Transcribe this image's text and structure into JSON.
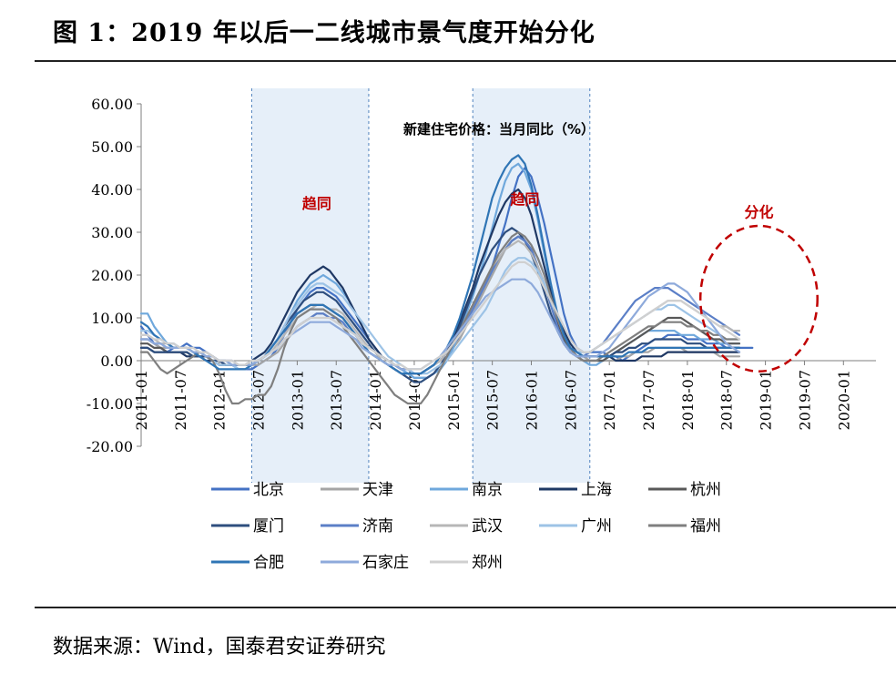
{
  "figure": {
    "title": "图 1：2019 年以后一二线城市景气度开始分化",
    "source": "数据来源：Wind，国泰君安证券研究"
  },
  "chart_data": {
    "type": "line",
    "title": "新建住宅价格：当月同比（%）",
    "xlabel": "",
    "ylabel": "",
    "ylim": [
      -20,
      60
    ],
    "yticks": [
      "60.00",
      "50.00",
      "40.00",
      "30.00",
      "20.00",
      "10.00",
      "0.00",
      "-10.00",
      "-20.00"
    ],
    "x_start": "2011-01",
    "x_end": "2020-06",
    "xticks": [
      "2011-01",
      "2011-07",
      "2012-01",
      "2012-07",
      "2013-01",
      "2013-07",
      "2014-01",
      "2014-07",
      "2015-01",
      "2015-07",
      "2016-01",
      "2016-07",
      "2017-01",
      "2017-07",
      "2018-01",
      "2018-07",
      "2019-01",
      "2019-07",
      "2020-01"
    ],
    "grid": false,
    "legend_position": "bottom",
    "shaded_periods": [
      {
        "from": "2012-06",
        "to": "2013-12"
      },
      {
        "from": "2015-04",
        "to": "2016-10"
      }
    ],
    "annotations": [
      {
        "text": "趋同",
        "x": "2013-04",
        "y": 35.5
      },
      {
        "text": "趋同",
        "x": "2015-12",
        "y": 36.5
      },
      {
        "text": "分化",
        "x": "2018-12",
        "y": 33.5
      }
    ],
    "ellipse": {
      "center_x": "2018-12",
      "center_y": 14.5,
      "rx_months": 9,
      "ry": 17
    },
    "series": [
      {
        "name": "北京",
        "color": "#4472c4",
        "values": [
          8,
          6,
          4,
          3,
          2,
          3,
          3,
          4,
          3,
          3,
          2,
          1,
          0,
          -1,
          -1,
          -2,
          -2,
          -2,
          -1,
          0,
          1,
          3,
          6,
          9,
          12,
          14,
          16,
          17,
          17,
          16,
          15,
          13,
          11,
          9,
          7,
          5,
          3,
          1,
          0,
          -1,
          -2,
          -3,
          -4,
          -4,
          -4,
          -3,
          -2,
          0,
          3,
          6,
          9,
          12,
          15,
          18,
          22,
          27,
          32,
          38,
          43,
          45,
          43,
          38,
          32,
          25,
          18,
          11,
          6,
          3,
          2,
          2,
          2,
          2,
          1,
          1,
          0,
          1,
          2,
          3,
          4,
          5,
          5,
          6,
          6,
          6,
          5,
          5,
          5,
          4,
          4,
          4,
          3,
          3,
          3,
          3,
          3
        ]
      },
      {
        "name": "天津",
        "color": "#a5a5a5",
        "values": [
          5,
          5,
          4,
          3,
          3,
          3,
          3,
          3,
          2,
          2,
          2,
          1,
          0,
          0,
          -1,
          -1,
          -1,
          -1,
          -1,
          0,
          1,
          2,
          4,
          6,
          8,
          9,
          10,
          11,
          11,
          10,
          9,
          8,
          6,
          5,
          4,
          2,
          1,
          0,
          -1,
          -2,
          -3,
          -3,
          -3,
          -3,
          -2,
          -1,
          0,
          1,
          3,
          5,
          8,
          11,
          14,
          17,
          20,
          23,
          26,
          28,
          29,
          28,
          26,
          22,
          18,
          13,
          8,
          4,
          2,
          1,
          1,
          0,
          0,
          0,
          0,
          0,
          1,
          1,
          2,
          2,
          2,
          3,
          3,
          3,
          3,
          3,
          2,
          2,
          2,
          2,
          2,
          1,
          1,
          1,
          1
        ]
      },
      {
        "name": "南京",
        "color": "#6fa8dc",
        "values": [
          11,
          11,
          8,
          6,
          4,
          4,
          3,
          3,
          2,
          2,
          1,
          0,
          -1,
          -1,
          -1,
          -2,
          -2,
          -1,
          0,
          1,
          3,
          5,
          8,
          11,
          14,
          16,
          18,
          19,
          20,
          19,
          18,
          16,
          14,
          11,
          8,
          5,
          3,
          1,
          0,
          -1,
          -2,
          -3,
          -4,
          -4,
          -4,
          -3,
          -2,
          0,
          3,
          7,
          11,
          15,
          20,
          25,
          31,
          37,
          42,
          45,
          46,
          44,
          40,
          33,
          25,
          17,
          10,
          5,
          2,
          1,
          0,
          -1,
          -1,
          0,
          1,
          2,
          3,
          4,
          5,
          6,
          7,
          7,
          7,
          7,
          7,
          6,
          6,
          6,
          5,
          5,
          5,
          4,
          4,
          4,
          4
        ]
      },
      {
        "name": "上海",
        "color": "#1f3864",
        "values": [
          3,
          3,
          2,
          2,
          2,
          2,
          2,
          1,
          1,
          1,
          0,
          0,
          -1,
          -1,
          -1,
          -1,
          -1,
          0,
          1,
          2,
          4,
          7,
          10,
          13,
          16,
          18,
          20,
          21,
          22,
          21,
          19,
          17,
          14,
          11,
          8,
          5,
          3,
          1,
          0,
          -1,
          -2,
          -2,
          -3,
          -3,
          -2,
          -1,
          0,
          2,
          5,
          9,
          13,
          17,
          22,
          26,
          30,
          34,
          37,
          39,
          40,
          38,
          34,
          28,
          22,
          16,
          11,
          7,
          4,
          2,
          1,
          1,
          1,
          1,
          1,
          0,
          0,
          0,
          0,
          1,
          1,
          1,
          1,
          2,
          2,
          2,
          2,
          2,
          2,
          2,
          2,
          2,
          2,
          2,
          2
        ]
      },
      {
        "name": "杭州",
        "color": "#595959",
        "values": [
          4,
          4,
          3,
          3,
          2,
          2,
          2,
          2,
          1,
          1,
          1,
          0,
          0,
          -1,
          -1,
          -1,
          -1,
          -1,
          0,
          1,
          3,
          5,
          7,
          9,
          11,
          12,
          13,
          13,
          13,
          12,
          11,
          10,
          8,
          6,
          4,
          2,
          1,
          0,
          -1,
          -2,
          -3,
          -3,
          -3,
          -3,
          -2,
          -1,
          0,
          2,
          4,
          7,
          10,
          13,
          16,
          19,
          22,
          24,
          26,
          28,
          29,
          28,
          26,
          22,
          18,
          13,
          9,
          5,
          3,
          1,
          0,
          0,
          0,
          0,
          1,
          2,
          3,
          4,
          5,
          6,
          7,
          8,
          9,
          10,
          10,
          10,
          9,
          8,
          7,
          6,
          5,
          5,
          4,
          4,
          4
        ]
      },
      {
        "name": "厦门",
        "color": "#2e4e7e",
        "values": [
          3,
          3,
          2,
          2,
          2,
          2,
          2,
          2,
          1,
          1,
          1,
          0,
          0,
          -1,
          -1,
          -1,
          -1,
          -1,
          0,
          1,
          3,
          5,
          8,
          10,
          12,
          14,
          15,
          16,
          16,
          15,
          14,
          12,
          10,
          8,
          6,
          4,
          2,
          0,
          -1,
          -2,
          -3,
          -4,
          -5,
          -5,
          -4,
          -3,
          -1,
          1,
          4,
          8,
          12,
          16,
          20,
          23,
          26,
          28,
          30,
          31,
          30,
          28,
          25,
          21,
          16,
          11,
          7,
          4,
          2,
          1,
          1,
          1,
          1,
          1,
          1,
          2,
          2,
          3,
          3,
          4,
          4,
          5,
          5,
          5,
          5,
          5,
          4,
          4,
          4,
          3,
          3,
          3,
          3,
          3,
          3
        ]
      },
      {
        "name": "济南",
        "color": "#5b7fc7",
        "values": [
          5,
          5,
          4,
          4,
          3,
          3,
          3,
          3,
          2,
          2,
          1,
          1,
          0,
          0,
          0,
          -1,
          -1,
          0,
          0,
          1,
          2,
          3,
          5,
          6,
          8,
          9,
          10,
          11,
          11,
          10,
          10,
          9,
          7,
          6,
          4,
          2,
          1,
          0,
          -1,
          -2,
          -3,
          -3,
          -3,
          -3,
          -2,
          -1,
          0,
          2,
          4,
          6,
          9,
          12,
          15,
          18,
          21,
          24,
          26,
          28,
          29,
          28,
          26,
          22,
          18,
          13,
          8,
          4,
          2,
          1,
          1,
          2,
          3,
          4,
          6,
          8,
          10,
          12,
          14,
          15,
          16,
          17,
          17,
          17,
          16,
          15,
          14,
          13,
          12,
          11,
          10,
          9,
          8,
          7,
          6
        ]
      },
      {
        "name": "武汉",
        "color": "#b7b7b7",
        "values": [
          6,
          6,
          5,
          4,
          4,
          3,
          3,
          3,
          2,
          2,
          1,
          1,
          0,
          0,
          0,
          -1,
          -1,
          0,
          0,
          1,
          2,
          4,
          6,
          8,
          10,
          11,
          12,
          13,
          13,
          12,
          12,
          11,
          9,
          7,
          5,
          3,
          2,
          0,
          -1,
          -2,
          -3,
          -3,
          -3,
          -3,
          -2,
          -1,
          0,
          2,
          4,
          7,
          10,
          13,
          16,
          19,
          22,
          24,
          26,
          27,
          28,
          27,
          25,
          22,
          18,
          14,
          10,
          6,
          3,
          2,
          2,
          2,
          3,
          4,
          5,
          6,
          7,
          8,
          9,
          10,
          11,
          12,
          13,
          14,
          14,
          14,
          13,
          12,
          11,
          10,
          9,
          8,
          8,
          7,
          7
        ]
      },
      {
        "name": "广州",
        "color": "#9dc3e6",
        "values": [
          7,
          7,
          6,
          5,
          4,
          4,
          3,
          3,
          2,
          2,
          1,
          0,
          -1,
          -1,
          -1,
          -2,
          -2,
          -1,
          0,
          1,
          3,
          5,
          8,
          11,
          13,
          15,
          17,
          18,
          18,
          17,
          16,
          15,
          13,
          11,
          9,
          7,
          5,
          3,
          1,
          0,
          -1,
          -2,
          -3,
          -3,
          -3,
          -2,
          -1,
          0,
          2,
          4,
          6,
          8,
          10,
          12,
          15,
          18,
          21,
          23,
          24,
          24,
          23,
          21,
          18,
          14,
          10,
          6,
          3,
          2,
          2,
          2,
          3,
          4,
          5,
          6,
          7,
          8,
          9,
          10,
          11,
          12,
          12,
          13,
          13,
          12,
          11,
          10,
          9,
          8,
          7,
          6,
          5,
          5,
          5
        ]
      },
      {
        "name": "福州",
        "color": "#7f7f7f",
        "values": [
          2,
          2,
          0,
          -2,
          -3,
          -2,
          -1,
          0,
          1,
          2,
          1,
          0,
          -3,
          -7,
          -10,
          -10,
          -9,
          -9,
          -8,
          -8,
          -6,
          -2,
          3,
          7,
          10,
          11,
          12,
          12,
          12,
          11,
          10,
          8,
          6,
          4,
          2,
          0,
          -2,
          -4,
          -6,
          -8,
          -9,
          -10,
          -10,
          -10,
          -8,
          -5,
          -2,
          1,
          4,
          7,
          10,
          13,
          16,
          19,
          22,
          25,
          27,
          29,
          30,
          29,
          27,
          24,
          20,
          15,
          10,
          6,
          3,
          1,
          0,
          0,
          0,
          1,
          2,
          3,
          4,
          5,
          6,
          7,
          8,
          8,
          9,
          9,
          9,
          9,
          8,
          8,
          7,
          7,
          6,
          6,
          5,
          5,
          5
        ]
      },
      {
        "name": "合肥",
        "color": "#2f75b5",
        "values": [
          9,
          8,
          6,
          5,
          4,
          3,
          3,
          3,
          2,
          1,
          0,
          -1,
          -2,
          -2,
          -2,
          -2,
          -2,
          -1,
          0,
          1,
          3,
          5,
          7,
          9,
          11,
          12,
          13,
          13,
          13,
          12,
          11,
          10,
          8,
          6,
          4,
          2,
          1,
          0,
          -1,
          -2,
          -3,
          -3,
          -3,
          -3,
          -2,
          -1,
          1,
          3,
          6,
          10,
          15,
          20,
          26,
          32,
          38,
          42,
          45,
          47,
          48,
          46,
          41,
          34,
          26,
          18,
          11,
          6,
          3,
          2,
          1,
          1,
          1,
          1,
          1,
          1,
          1,
          2,
          2,
          2,
          3,
          3,
          3,
          3,
          3,
          3,
          3,
          3,
          3,
          3,
          3,
          3,
          3,
          3,
          3
        ]
      },
      {
        "name": "石家庄",
        "color": "#8eaadb",
        "values": [
          5,
          5,
          4,
          4,
          3,
          3,
          3,
          3,
          2,
          2,
          1,
          1,
          0,
          0,
          -1,
          -1,
          -1,
          -1,
          0,
          1,
          2,
          3,
          5,
          6,
          7,
          8,
          9,
          9,
          9,
          9,
          8,
          7,
          6,
          5,
          3,
          2,
          1,
          0,
          -1,
          -1,
          -2,
          -2,
          -2,
          -2,
          -1,
          0,
          1,
          3,
          5,
          7,
          9,
          11,
          13,
          15,
          16,
          17,
          18,
          19,
          19,
          19,
          18,
          16,
          13,
          10,
          7,
          4,
          2,
          1,
          1,
          1,
          1,
          2,
          3,
          5,
          7,
          9,
          11,
          13,
          15,
          16,
          17,
          18,
          18,
          17,
          16,
          14,
          12,
          10,
          8,
          6,
          4,
          3,
          2
        ]
      },
      {
        "name": "郑州",
        "color": "#d0d0d0",
        "values": [
          6,
          6,
          5,
          5,
          4,
          4,
          3,
          3,
          3,
          2,
          2,
          1,
          0,
          0,
          0,
          -1,
          -1,
          0,
          0,
          1,
          2,
          3,
          5,
          6,
          8,
          9,
          10,
          10,
          10,
          10,
          9,
          8,
          7,
          6,
          4,
          3,
          2,
          1,
          0,
          -1,
          -1,
          -2,
          -2,
          -2,
          -1,
          0,
          1,
          2,
          4,
          6,
          8,
          10,
          12,
          14,
          16,
          18,
          20,
          22,
          23,
          23,
          22,
          20,
          17,
          14,
          11,
          8,
          5,
          3,
          2,
          2,
          3,
          4,
          5,
          6,
          7,
          8,
          9,
          10,
          11,
          12,
          13,
          14,
          14,
          14,
          13,
          12,
          11,
          10,
          9,
          8,
          7,
          6,
          5
        ]
      }
    ]
  }
}
